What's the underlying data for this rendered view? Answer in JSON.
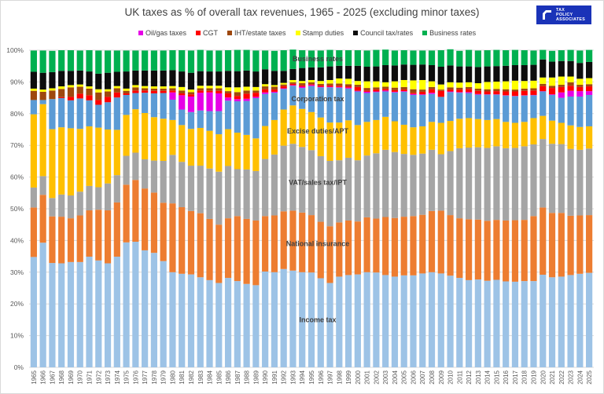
{
  "title": "UK taxes as % of overall tax revenues, 1965 - 2025 (excluding minor taxes)",
  "logo": {
    "line1": "TAX",
    "line2": "POLICY",
    "line3": "ASSOCIATES"
  },
  "legend": [
    {
      "name": "Oil/gas taxes",
      "color": "#e600e6"
    },
    {
      "name": "CGT",
      "color": "#ff0000"
    },
    {
      "name": "IHT/estate taxes",
      "color": "#9e480e"
    },
    {
      "name": "Stamp duties",
      "color": "#ffff00"
    },
    {
      "name": "Council tax/rates",
      "color": "#0d0d0d"
    },
    {
      "name": "Business rates",
      "color": "#00b050"
    }
  ],
  "chart_data": {
    "type": "bar",
    "stacked": true,
    "title": "UK taxes as % of overall tax revenues, 1965 - 2025 (excluding minor taxes)",
    "xlabel": "",
    "ylabel": "",
    "ylim": [
      0,
      100
    ],
    "yticks": [
      "0%",
      "10%",
      "20%",
      "30%",
      "40%",
      "50%",
      "60%",
      "70%",
      "80%",
      "90%",
      "100%"
    ],
    "grid": true,
    "legend_position": "top",
    "categories": [
      "1965",
      "1966",
      "1967",
      "1968",
      "1969",
      "1970",
      "1971",
      "1972",
      "1973",
      "1974",
      "1975",
      "1976",
      "1977",
      "1978",
      "1979",
      "1980",
      "1981",
      "1982",
      "1983",
      "1984",
      "1985",
      "1986",
      "1987",
      "1988",
      "1989",
      "1990",
      "1991",
      "1992",
      "1993",
      "1994",
      "1995",
      "1996",
      "1997",
      "1998",
      "1999",
      "2000",
      "2001",
      "2002",
      "2003",
      "2004",
      "2005",
      "2006",
      "2007",
      "2008",
      "2009",
      "2010",
      "2011",
      "2012",
      "2013",
      "2014",
      "2015",
      "2016",
      "2017",
      "2018",
      "2019",
      "2020",
      "2021",
      "2022",
      "2023",
      "2024",
      "2025"
    ],
    "series": [
      {
        "name": "Income tax",
        "color": "#9dc3e6",
        "label": "Income tax",
        "values": [
          34.8,
          39.3,
          32.9,
          32.8,
          33.2,
          33.2,
          34.9,
          33.7,
          32.8,
          34.9,
          39.4,
          39.6,
          36.9,
          36.1,
          33.5,
          30.0,
          29.5,
          29.3,
          28.4,
          27.5,
          26.6,
          28.2,
          27.2,
          26.3,
          25.9,
          30.2,
          30.0,
          31.0,
          30.5,
          30.0,
          29.9,
          28.1,
          26.6,
          28.6,
          29.1,
          29.3,
          30.0,
          29.9,
          29.1,
          28.6,
          29.0,
          29.0,
          29.6,
          30.0,
          29.6,
          28.9,
          28.2,
          27.5,
          27.7,
          27.3,
          27.6,
          27.1,
          27.0,
          27.2,
          27.2,
          29.2,
          28.4,
          28.6,
          29.1,
          29.5,
          29.8
        ]
      },
      {
        "name": "National insurance",
        "color": "#ed7d31",
        "label": "National insurance",
        "values": [
          15.6,
          15.1,
          14.7,
          14.7,
          13.8,
          14.7,
          14.6,
          16.0,
          16.7,
          17.1,
          18.2,
          19.5,
          19.5,
          19.0,
          18.4,
          21.7,
          21.0,
          20.0,
          20.2,
          19.3,
          18.4,
          18.8,
          20.5,
          20.5,
          20.4,
          17.5,
          17.9,
          18.2,
          18.9,
          18.8,
          18.1,
          17.8,
          17.9,
          17.1,
          17.2,
          16.7,
          17.3,
          17.0,
          18.3,
          18.5,
          18.5,
          18.7,
          18.5,
          19.3,
          19.8,
          19.1,
          18.8,
          19.2,
          18.9,
          18.9,
          18.9,
          19.2,
          19.4,
          19.3,
          20.5,
          21.2,
          20.3,
          20.1,
          18.7,
          18.4,
          18.2
        ]
      },
      {
        "name": "VAT/sales tax/IPT",
        "color": "#a5a5a5",
        "label": "VAT/sales tax/IPT",
        "values": [
          6.3,
          5.9,
          5.8,
          7.0,
          7.2,
          7.5,
          7.7,
          7.1,
          8.5,
          8.6,
          9.1,
          8.6,
          9.2,
          10.1,
          13.2,
          15.3,
          14.3,
          14.3,
          15.0,
          15.9,
          16.7,
          16.5,
          14.8,
          15.6,
          15.6,
          18.0,
          19.2,
          20.7,
          21.1,
          20.7,
          20.5,
          20.7,
          20.6,
          19.6,
          19.8,
          19.3,
          19.5,
          20.6,
          21.2,
          20.8,
          19.8,
          19.3,
          19.3,
          19.3,
          17.8,
          20.2,
          22.1,
          22.6,
          22.8,
          23.0,
          23.2,
          22.8,
          22.8,
          23.2,
          22.6,
          21.6,
          21.8,
          21.7,
          21.1,
          20.7,
          21.0
        ]
      },
      {
        "name": "Excise duties/APT",
        "color": "#ffc000",
        "label": "Excise duties/APT",
        "values": [
          23.1,
          22.7,
          21.7,
          21.2,
          21.2,
          19.8,
          18.8,
          18.8,
          17.0,
          14.3,
          12.9,
          13.7,
          14.6,
          13.7,
          13.3,
          11.0,
          11.6,
          11.6,
          11.9,
          11.9,
          11.8,
          11.6,
          11.5,
          10.9,
          10.3,
          10.4,
          10.9,
          11.4,
          12.1,
          12.0,
          12.0,
          12.2,
          12.1,
          11.9,
          11.8,
          11.1,
          10.6,
          10.5,
          10.4,
          9.7,
          9.2,
          8.7,
          8.6,
          8.8,
          9.9,
          9.5,
          9.3,
          9.3,
          8.9,
          8.8,
          8.6,
          8.3,
          7.9,
          7.7,
          8.3,
          7.3,
          7.3,
          6.7,
          7.4,
          7.2,
          7.0
        ]
      },
      {
        "name": "Corporation tax",
        "color": "#5b9bd5",
        "label": "Corporation tax",
        "values": [
          4.5,
          1.3,
          9.5,
          9.2,
          8.8,
          9.6,
          8.2,
          7.2,
          8.6,
          10.2,
          6.3,
          5.1,
          6.4,
          7.5,
          8.1,
          6.4,
          4.9,
          5.3,
          5.5,
          6.2,
          7.3,
          9.0,
          9.9,
          10.7,
          12.7,
          10.1,
          8.6,
          6.5,
          6.2,
          6.6,
          8.2,
          9.5,
          11.1,
          11.0,
          10.0,
          10.6,
          9.1,
          8.8,
          8.0,
          9.1,
          10.4,
          10.2,
          9.9,
          8.8,
          8.2,
          9.1,
          8.2,
          7.9,
          7.7,
          8.0,
          7.7,
          8.3,
          8.4,
          8.3,
          7.2,
          7.7,
          8.1,
          7.9,
          9.1,
          9.6,
          9.9
        ]
      },
      {
        "name": "Oil/gas taxes",
        "color": "#e600e6",
        "values": [
          0,
          0,
          0,
          0,
          0,
          0,
          0,
          0,
          0,
          0,
          0,
          0,
          0,
          0,
          0,
          2.3,
          4.5,
          4.9,
          5.6,
          5.9,
          5.6,
          1.0,
          0.7,
          0.7,
          0.4,
          0.5,
          0.3,
          0.2,
          0.2,
          0.4,
          0.3,
          0.2,
          0.2,
          0.2,
          0.3,
          0.2,
          0.4,
          0.2,
          0.3,
          0.2,
          0.2,
          0.3,
          0.2,
          0.4,
          0,
          0.2,
          0.2,
          0.3,
          0.2,
          0.1,
          0.1,
          0.1,
          0.1,
          0.1,
          0.1,
          0.1,
          0.2,
          1.7,
          1.8,
          1.7,
          1.2
        ]
      },
      {
        "name": "CGT",
        "color": "#ff0000",
        "values": [
          0,
          0,
          0,
          0.3,
          1.1,
          1.5,
          1.6,
          1.5,
          1.7,
          1.6,
          0.5,
          0.8,
          0.7,
          0.8,
          0.7,
          0.6,
          0.6,
          0.7,
          0.7,
          0.5,
          0.8,
          1.3,
          1.0,
          1.6,
          1.3,
          1.0,
          0.7,
          0.7,
          0.4,
          0.4,
          0.3,
          0.4,
          0.4,
          0.4,
          0.4,
          1.2,
          0.4,
          0.6,
          0.5,
          0.5,
          0.5,
          0.4,
          0.8,
          1.1,
          1.9,
          0.6,
          0.8,
          1.0,
          1.0,
          0.9,
          1.0,
          1.2,
          1.4,
          1.4,
          1.4,
          1.6,
          2.0,
          1.7,
          1.6,
          1.3,
          1.5
        ]
      },
      {
        "name": "IHT/estate taxes",
        "color": "#9e480e",
        "values": [
          2.9,
          2.6,
          2.7,
          2.6,
          3.0,
          2.2,
          2.1,
          2.4,
          1.7,
          1.3,
          0.8,
          1.0,
          0.7,
          0.7,
          0.7,
          0.7,
          0.9,
          0.7,
          0.7,
          0.8,
          0.8,
          0.7,
          1.2,
          1.0,
          0.7,
          0.9,
          0.9,
          0.5,
          0.5,
          0.7,
          0.6,
          0.5,
          0.6,
          0.7,
          0.7,
          0.7,
          0.8,
          0.7,
          0.7,
          0.8,
          0.8,
          1.1,
          0.7,
          0.7,
          0.4,
          0.7,
          0.6,
          0.6,
          0.7,
          0.7,
          0.7,
          0.7,
          0.6,
          0.7,
          0.7,
          0.7,
          0.7,
          0.7,
          1.1,
          0.7,
          0.7
        ]
      },
      {
        "name": "Stamp duties",
        "color": "#ffff00",
        "values": [
          0.7,
          0.7,
          0.7,
          0.8,
          0.7,
          0.7,
          0.7,
          1.0,
          0.7,
          0.7,
          0.7,
          0.7,
          0.7,
          0.7,
          0.7,
          0.7,
          1.1,
          0.8,
          0.8,
          0.8,
          0.8,
          1.2,
          1.5,
          1.2,
          1.1,
          0.7,
          0.5,
          0.5,
          0.7,
          0.7,
          0.7,
          0.9,
          1.1,
          1.6,
          1.7,
          1.2,
          2.1,
          1.9,
          1.4,
          2.0,
          2.2,
          2.8,
          3.0,
          1.8,
          1.6,
          1.6,
          1.6,
          1.5,
          1.7,
          2.3,
          2.3,
          2.5,
          2.8,
          2.4,
          2.4,
          2.0,
          2.6,
          2.6,
          1.8,
          1.9,
          1.9
        ]
      },
      {
        "name": "Council tax/rates",
        "color": "#0d0d0d",
        "values": [
          5.3,
          5.3,
          5.1,
          4.9,
          4.5,
          4.4,
          4.7,
          4.9,
          5.2,
          4.5,
          5.4,
          4.6,
          4.9,
          5.0,
          5.0,
          5.0,
          4.9,
          5.3,
          4.6,
          4.5,
          4.5,
          5.2,
          5.1,
          5.1,
          4.9,
          4.7,
          4.5,
          3.8,
          3.5,
          4.1,
          4.0,
          4.3,
          4.3,
          4.0,
          4.1,
          4.8,
          4.6,
          4.7,
          5.4,
          5.0,
          4.9,
          4.9,
          4.9,
          5.1,
          5.6,
          5.3,
          5.1,
          5.0,
          5.1,
          4.9,
          4.9,
          4.9,
          4.9,
          5.0,
          5.0,
          5.7,
          5.0,
          4.9,
          4.9,
          5.0,
          5.1
        ]
      },
      {
        "name": "Business rates",
        "color": "#00b050",
        "label": "Business rates",
        "values": [
          6.7,
          7.0,
          6.7,
          6.5,
          6.5,
          6.3,
          6.7,
          7.3,
          7.0,
          6.7,
          6.6,
          6.3,
          6.3,
          6.3,
          6.3,
          6.3,
          6.7,
          7.0,
          6.7,
          6.6,
          6.6,
          6.5,
          6.7,
          6.5,
          6.6,
          5.9,
          6.3,
          6.5,
          6.1,
          5.6,
          5.3,
          5.3,
          5.2,
          4.9,
          4.9,
          4.9,
          5.1,
          5.2,
          4.9,
          4.7,
          4.5,
          4.5,
          4.4,
          4.6,
          5.2,
          5.1,
          4.9,
          5.2,
          5.2,
          5.1,
          5.1,
          4.9,
          4.8,
          4.7,
          4.5,
          3.0,
          3.4,
          3.4,
          3.5,
          3.9,
          3.8
        ]
      }
    ]
  }
}
